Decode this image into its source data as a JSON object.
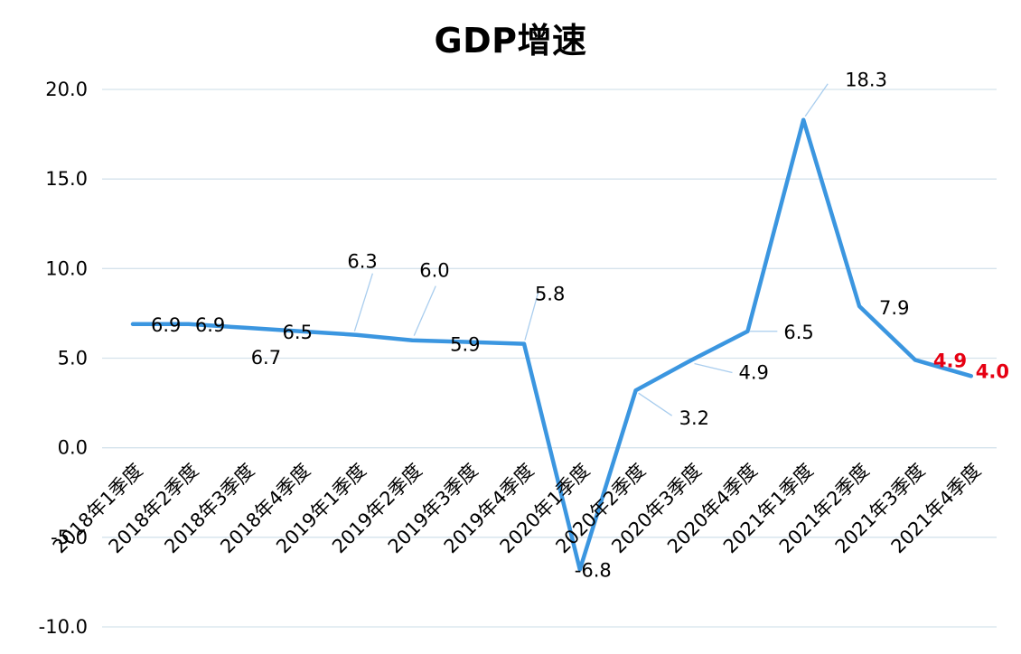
{
  "chart_data": {
    "type": "line",
    "title": "GDP增速",
    "xlabel": "",
    "ylabel": "",
    "ylim": [
      -10,
      20
    ],
    "yticks": [
      "20.0",
      "15.0",
      "10.0",
      "5.0",
      "0.0",
      "-5.0",
      "-10.0"
    ],
    "grid": true,
    "legend": "none",
    "categories": [
      "2018年1季度",
      "2018年2季度",
      "2018年3季度",
      "2018年4季度",
      "2019年1季度",
      "2019年2季度",
      "2019年3季度",
      "2019年4季度",
      "2020年1季度",
      "2020年2季度",
      "2020年3季度",
      "2020年4季度",
      "2021年1季度",
      "2021年2季度",
      "2021年3季度",
      "2021年4季度"
    ],
    "series": [
      {
        "values": [
          6.9,
          6.9,
          6.7,
          6.5,
          6.3,
          6.0,
          5.9,
          5.8,
          -6.8,
          3.2,
          4.9,
          6.5,
          18.3,
          7.9,
          4.9,
          4.0
        ],
        "labels": [
          "6.9",
          "6.9",
          "6.7",
          "6.5",
          "6.3",
          "6.0",
          "5.9",
          "5.8",
          "-6.8",
          "3.2",
          "4.9",
          "6.5",
          "18.3",
          "7.9",
          "4.9",
          "4.0"
        ],
        "color": "#3b96e0"
      }
    ],
    "highlight_color": "#e60012",
    "highlight_indices": [
      14,
      15
    ],
    "gridline_color": "#d5e3ec",
    "leader_line_color": "#a9cdee"
  }
}
